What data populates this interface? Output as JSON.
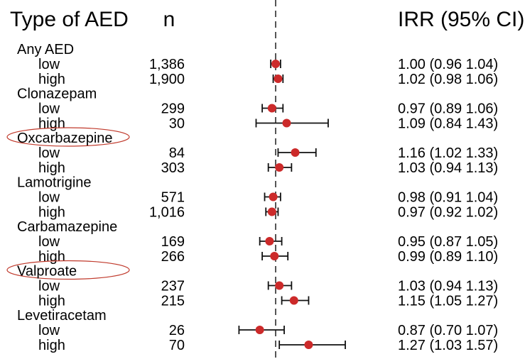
{
  "header": {
    "col_type": "Type of AED",
    "col_n": "n",
    "col_irr": "IRR (95% CI)"
  },
  "highlight_color": "#c0392b",
  "point_color": "#cc2a2a",
  "chart_data": {
    "type": "forest",
    "title": "",
    "reference_line": 1.0,
    "reference_style": "dashed",
    "groups": [
      {
        "name": "Any AED",
        "highlighted": false,
        "rows": [
          {
            "label": "low",
            "n": "1,386",
            "irr": 1.0,
            "lo": 0.96,
            "hi": 1.04,
            "ci_text": "1.00 (0.96  1.04)"
          },
          {
            "label": "high",
            "n": "1,900",
            "irr": 1.02,
            "lo": 0.98,
            "hi": 1.06,
            "ci_text": "1.02 (0.98  1.06)"
          }
        ]
      },
      {
        "name": "Clonazepam",
        "highlighted": false,
        "rows": [
          {
            "label": "low",
            "n": "299",
            "irr": 0.97,
            "lo": 0.89,
            "hi": 1.06,
            "ci_text": "0.97 (0.89  1.06)"
          },
          {
            "label": "high",
            "n": "30",
            "irr": 1.09,
            "lo": 0.84,
            "hi": 1.43,
            "ci_text": "1.09 (0.84  1.43)"
          }
        ]
      },
      {
        "name": "Oxcarbazepine",
        "highlighted": true,
        "rows": [
          {
            "label": "low",
            "n": "84",
            "irr": 1.16,
            "lo": 1.02,
            "hi": 1.33,
            "ci_text": "1.16 (1.02  1.33)"
          },
          {
            "label": "high",
            "n": "303",
            "irr": 1.03,
            "lo": 0.94,
            "hi": 1.13,
            "ci_text": "1.03 (0.94  1.13)"
          }
        ]
      },
      {
        "name": "Lamotrigine",
        "highlighted": false,
        "rows": [
          {
            "label": "low",
            "n": "571",
            "irr": 0.98,
            "lo": 0.91,
            "hi": 1.04,
            "ci_text": "0.98 (0.91  1.04)"
          },
          {
            "label": "high",
            "n": "1,016",
            "irr": 0.97,
            "lo": 0.92,
            "hi": 1.02,
            "ci_text": "0.97 (0.92  1.02)"
          }
        ]
      },
      {
        "name": "Carbamazepine",
        "highlighted": false,
        "rows": [
          {
            "label": "low",
            "n": "169",
            "irr": 0.95,
            "lo": 0.87,
            "hi": 1.05,
            "ci_text": "0.95 (0.87  1.05)"
          },
          {
            "label": "high",
            "n": "266",
            "irr": 0.99,
            "lo": 0.89,
            "hi": 1.1,
            "ci_text": "0.99 (0.89  1.10)"
          }
        ]
      },
      {
        "name": "Valproate",
        "highlighted": true,
        "rows": [
          {
            "label": "low",
            "n": "237",
            "irr": 1.03,
            "lo": 0.94,
            "hi": 1.13,
            "ci_text": "1.03 (0.94  1.13)"
          },
          {
            "label": "high",
            "n": "215",
            "irr": 1.15,
            "lo": 1.05,
            "hi": 1.27,
            "ci_text": "1.15 (1.05  1.27)"
          }
        ]
      },
      {
        "name": "Levetiracetam",
        "highlighted": false,
        "rows": [
          {
            "label": "low",
            "n": "26",
            "irr": 0.87,
            "lo": 0.7,
            "hi": 1.07,
            "ci_text": "0.87 (0.70  1.07)"
          },
          {
            "label": "high",
            "n": "70",
            "irr": 1.27,
            "lo": 1.03,
            "hi": 1.57,
            "ci_text": "1.27 (1.03  1.57)"
          }
        ]
      }
    ]
  }
}
